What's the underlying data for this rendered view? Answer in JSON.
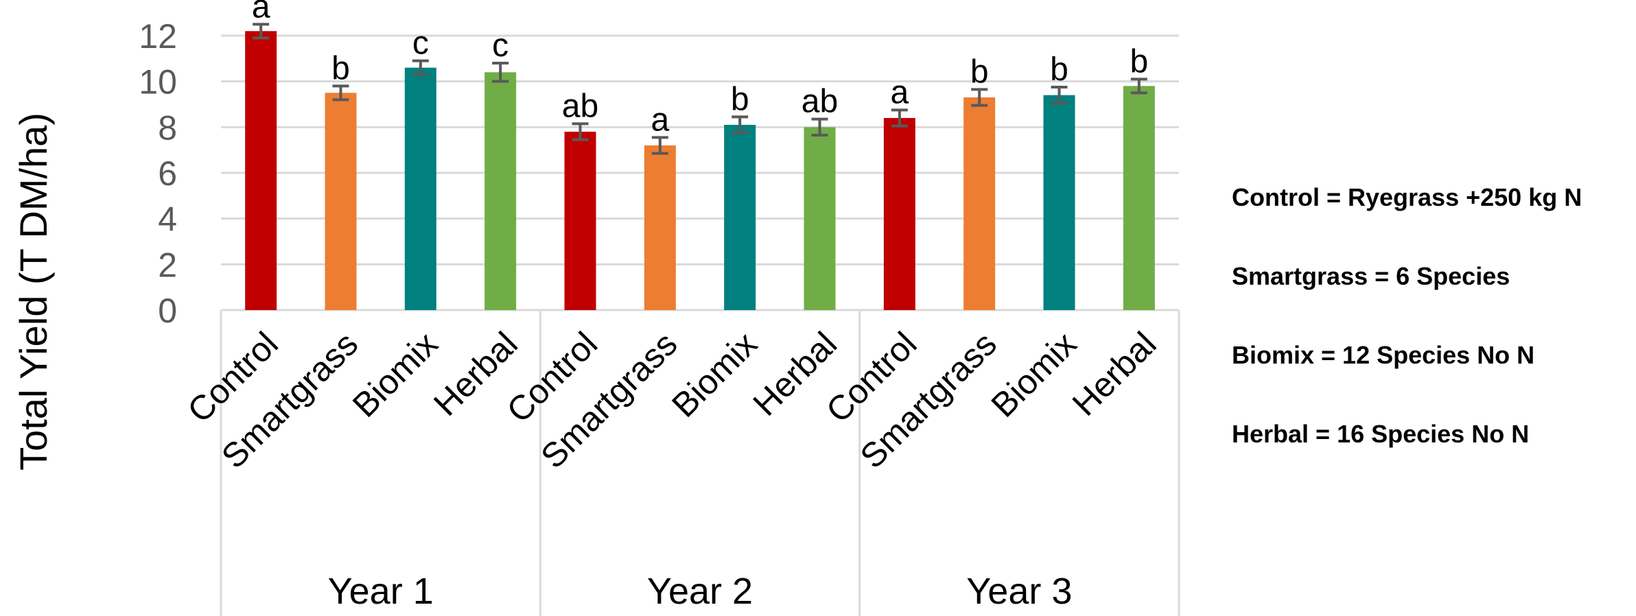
{
  "chart_data": {
    "type": "bar",
    "ylabel": "Total Yield (T DM/ha)",
    "xlabel": "",
    "ylim": [
      0,
      12
    ],
    "yticks": [
      0,
      2,
      4,
      6,
      8,
      10,
      12
    ],
    "grid": true,
    "groups": [
      {
        "label": "Year 1",
        "bars": [
          {
            "category": "Control",
            "value": 12.2,
            "error": 0.3,
            "letter": "a",
            "color": "#C00000"
          },
          {
            "category": "Smartgrass",
            "value": 9.5,
            "error": 0.3,
            "letter": "b",
            "color": "#ED7D31"
          },
          {
            "category": "Biomix",
            "value": 10.6,
            "error": 0.3,
            "letter": "c",
            "color": "#00807F"
          },
          {
            "category": "Herbal",
            "value": 10.4,
            "error": 0.4,
            "letter": "c",
            "color": "#70AD47"
          }
        ]
      },
      {
        "label": "Year 2",
        "bars": [
          {
            "category": "Control",
            "value": 7.8,
            "error": 0.35,
            "letter": "ab",
            "color": "#C00000"
          },
          {
            "category": "Smartgrass",
            "value": 7.2,
            "error": 0.35,
            "letter": "a",
            "color": "#ED7D31"
          },
          {
            "category": "Biomix",
            "value": 8.1,
            "error": 0.35,
            "letter": "b",
            "color": "#00807F"
          },
          {
            "category": "Herbal",
            "value": 8.0,
            "error": 0.35,
            "letter": "ab",
            "color": "#70AD47"
          }
        ]
      },
      {
        "label": "Year 3",
        "bars": [
          {
            "category": "Control",
            "value": 8.4,
            "error": 0.35,
            "letter": "a",
            "color": "#C00000"
          },
          {
            "category": "Smartgrass",
            "value": 9.3,
            "error": 0.35,
            "letter": "b",
            "color": "#ED7D31"
          },
          {
            "category": "Biomix",
            "value": 9.4,
            "error": 0.35,
            "letter": "b",
            "color": "#00807F"
          },
          {
            "category": "Herbal",
            "value": 9.8,
            "error": 0.3,
            "letter": "b",
            "color": "#70AD47"
          }
        ]
      }
    ]
  },
  "notes": [
    "Control = Ryegrass +250 kg N",
    "Smartgrass = 6 Species",
    "Biomix = 12 Species No N",
    "Herbal = 16 Species No N"
  ]
}
